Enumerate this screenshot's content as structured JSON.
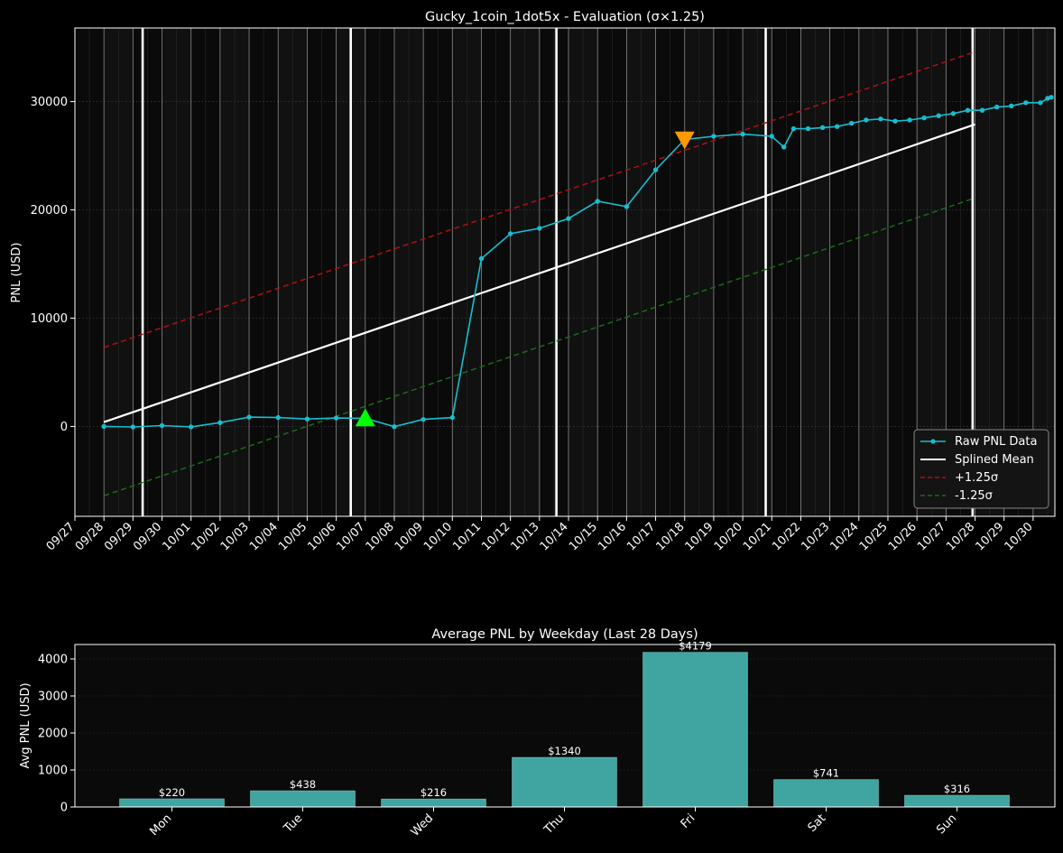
{
  "chart_data": [
    {
      "type": "line",
      "title": "Gucky_1coin_1dot5x - Evaluation (σ×1.25)",
      "xlabel": "",
      "ylabel": "PNL (USD)",
      "x_tick_labels": [
        "09/27",
        "09/28",
        "09/29",
        "09/30",
        "10/01",
        "10/02",
        "10/03",
        "10/04",
        "10/05",
        "10/06",
        "10/07",
        "10/08",
        "10/09",
        "10/10",
        "10/11",
        "10/12",
        "10/13",
        "10/14",
        "10/15",
        "10/16",
        "10/17",
        "10/18",
        "10/19",
        "10/20",
        "10/21",
        "10/22",
        "10/23",
        "10/24",
        "10/25",
        "10/26",
        "10/27",
        "10/28",
        "10/29",
        "10/30"
      ],
      "y_ticks": [
        0,
        10000,
        20000,
        30000
      ],
      "xlim": [
        "09/27 00:00",
        "10/30 18:00"
      ],
      "ylim": [
        -8300,
        36800
      ],
      "grid": true,
      "legend_position": "lower right",
      "week_marker_dates": [
        "09/29 08:00",
        "10/06 12:00",
        "10/13 14:00",
        "10/20 19:00",
        "10/27 22:00"
      ],
      "series": [
        {
          "name": "Raw PNL Data",
          "color": "#17becf",
          "style": "line-markers",
          "points": [
            [
              "09/28 00:00",
              0
            ],
            [
              "09/29 00:00",
              -50
            ],
            [
              "09/30 00:00",
              80
            ],
            [
              "10/01 00:00",
              -40
            ],
            [
              "10/02 00:00",
              350
            ],
            [
              "10/03 00:00",
              860
            ],
            [
              "10/04 00:00",
              820
            ],
            [
              "10/05 00:00",
              690
            ],
            [
              "10/06 00:00",
              780
            ],
            [
              "10/07 00:00",
              750
            ],
            [
              "10/08 00:00",
              -20
            ],
            [
              "10/09 00:00",
              650
            ],
            [
              "10/10 00:00",
              820
            ],
            [
              "10/11 00:00",
              15500
            ],
            [
              "10/12 00:00",
              17800
            ],
            [
              "10/13 00:00",
              18300
            ],
            [
              "10/14 00:00",
              19200
            ],
            [
              "10/15 00:00",
              20800
            ],
            [
              "10/16 00:00",
              20300
            ],
            [
              "10/17 00:00",
              23700
            ],
            [
              "10/18 00:00",
              26500
            ],
            [
              "10/19 00:00",
              26800
            ],
            [
              "10/20 00:00",
              27000
            ],
            [
              "10/21 00:00",
              26800
            ],
            [
              "10/21 10:00",
              25800
            ],
            [
              "10/21 18:00",
              27500
            ],
            [
              "10/22 06:00",
              27500
            ],
            [
              "10/22 18:00",
              27600
            ],
            [
              "10/23 06:00",
              27700
            ],
            [
              "10/23 18:00",
              28000
            ],
            [
              "10/24 06:00",
              28300
            ],
            [
              "10/24 18:00",
              28400
            ],
            [
              "10/25 06:00",
              28200
            ],
            [
              "10/25 18:00",
              28300
            ],
            [
              "10/26 06:00",
              28500
            ],
            [
              "10/26 18:00",
              28700
            ],
            [
              "10/27 06:00",
              28900
            ],
            [
              "10/27 18:00",
              29200
            ],
            [
              "10/28 06:00",
              29200
            ],
            [
              "10/28 18:00",
              29500
            ],
            [
              "10/29 06:00",
              29600
            ],
            [
              "10/29 18:00",
              29900
            ],
            [
              "10/30 06:00",
              29900
            ],
            [
              "10/30 12:00",
              30300
            ],
            [
              "10/30 15:00",
              30400
            ]
          ]
        },
        {
          "name": "Splined Mean",
          "color": "#ffffff",
          "style": "solid",
          "points": [
            [
              "09/28 00:00",
              400
            ],
            [
              "10/28 00:00",
              27900
            ]
          ]
        },
        {
          "name": "+1.25σ",
          "color": "#b01010",
          "style": "dashed",
          "points": [
            [
              "09/28 00:00",
              7300
            ],
            [
              "10/28 00:00",
              34600
            ]
          ]
        },
        {
          "name": "-1.25σ",
          "color": "#1a6b1a",
          "style": "dashed",
          "points": [
            [
              "09/28 00:00",
              -6400
            ],
            [
              "10/28 00:00",
              21100
            ]
          ]
        }
      ],
      "markers": [
        {
          "kind": "buy",
          "symbol": "triangle-up",
          "color": "#00ff00",
          "x": "10/07 00:00",
          "y": 750
        },
        {
          "kind": "sell",
          "symbol": "triangle-down",
          "color": "#ff9900",
          "x": "10/18 00:00",
          "y": 26500
        }
      ]
    },
    {
      "type": "bar",
      "title": "Average PNL by Weekday (Last 28 Days)",
      "xlabel": "",
      "ylabel": "Avg PNL (USD)",
      "categories": [
        "Mon",
        "Tue",
        "Wed",
        "Thu",
        "Fri",
        "Sat",
        "Sun"
      ],
      "values": [
        220,
        438,
        216,
        1340,
        4179,
        741,
        316
      ],
      "value_labels": [
        "$220",
        "$438",
        "$216",
        "$1340",
        "$4179",
        "$741",
        "$316"
      ],
      "y_ticks": [
        0,
        1000,
        2000,
        3000,
        4000
      ],
      "ylim": [
        0,
        4390
      ],
      "bar_color": "#40a5a0",
      "grid": true
    }
  ],
  "colors": {
    "background": "#000000",
    "axes_background": "#0a0a0a",
    "text": "#ffffff",
    "grid": "#3a3a3a",
    "date_gridline": "#8a8a8a",
    "week_marker": "#ffffff"
  }
}
